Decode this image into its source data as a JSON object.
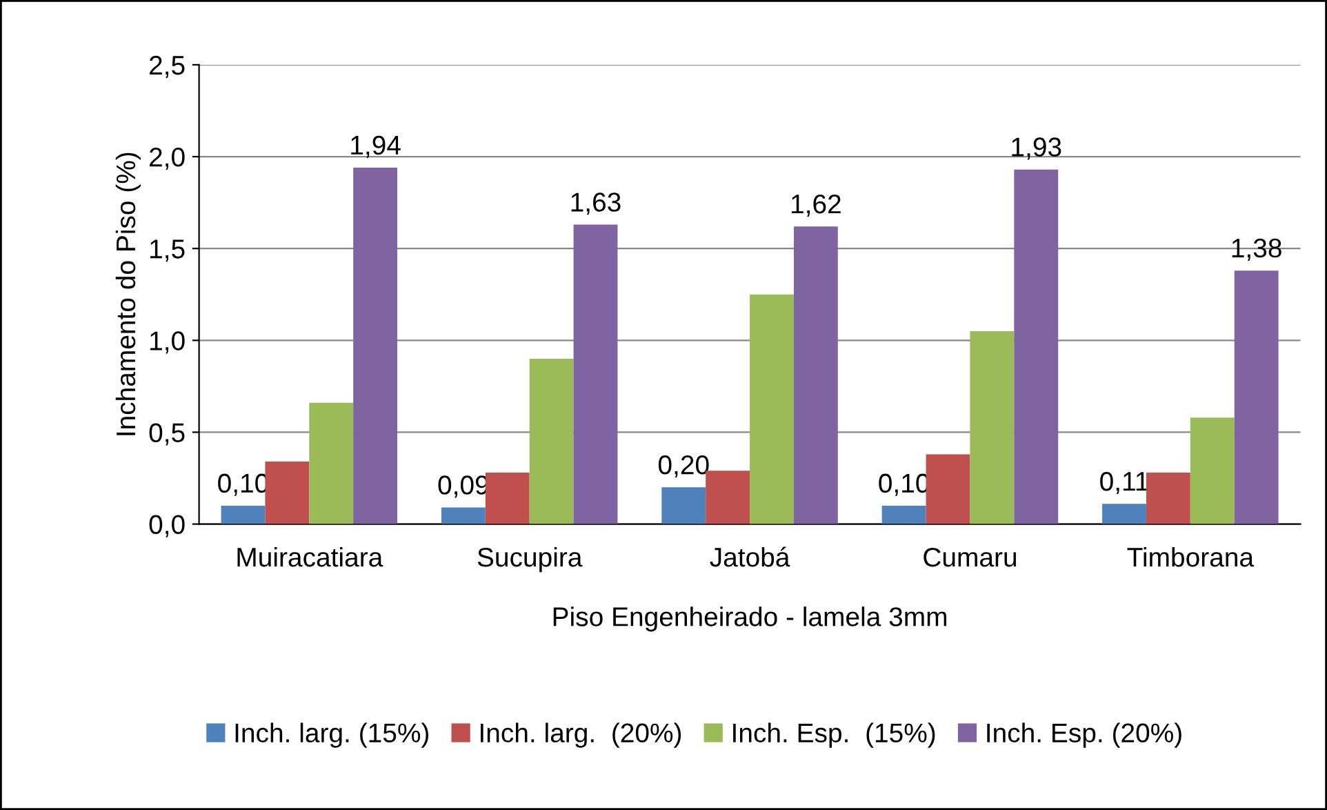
{
  "chart_data": {
    "type": "bar",
    "xlabel": "Piso Engenheirado - lamela 3mm",
    "ylabel": "Inchamento do Piso (%)",
    "categories": [
      "Muiracatiara",
      "Sucupira",
      "Jatobá",
      "Cumaru",
      "Timborana"
    ],
    "series": [
      {
        "name": "Inch. larg. (15%)",
        "color": "#4f81bd",
        "values": [
          0.1,
          0.09,
          0.2,
          0.1,
          0.11
        ],
        "value_labels": [
          "0,10",
          "0,09",
          "0,20",
          "0,10",
          "0,11"
        ]
      },
      {
        "name": "Inch. larg.  (20%)",
        "color": "#c0504d",
        "values": [
          0.34,
          0.28,
          0.29,
          0.38,
          0.28
        ]
      },
      {
        "name": "Inch. Esp.  (15%)",
        "color": "#9bbb59",
        "values": [
          0.66,
          0.9,
          1.25,
          1.05,
          0.58
        ]
      },
      {
        "name": "Inch. Esp. (20%)",
        "color": "#8064a2",
        "values": [
          1.94,
          1.63,
          1.62,
          1.93,
          1.38
        ],
        "value_labels": [
          "1,94",
          "1,63",
          "1,62",
          "1,93",
          "1,38"
        ]
      }
    ],
    "ylim": [
      0,
      2.5
    ],
    "yticks": [
      {
        "value": 0,
        "label": "0,0"
      },
      {
        "value": 0.5,
        "label": "0,5"
      },
      {
        "value": 1,
        "label": "1,0"
      },
      {
        "value": 1.5,
        "label": "1,5"
      },
      {
        "value": 2,
        "label": "2,0"
      },
      {
        "value": 2.5,
        "label": "2,5"
      }
    ],
    "grid": "y",
    "legend": "bottom"
  }
}
